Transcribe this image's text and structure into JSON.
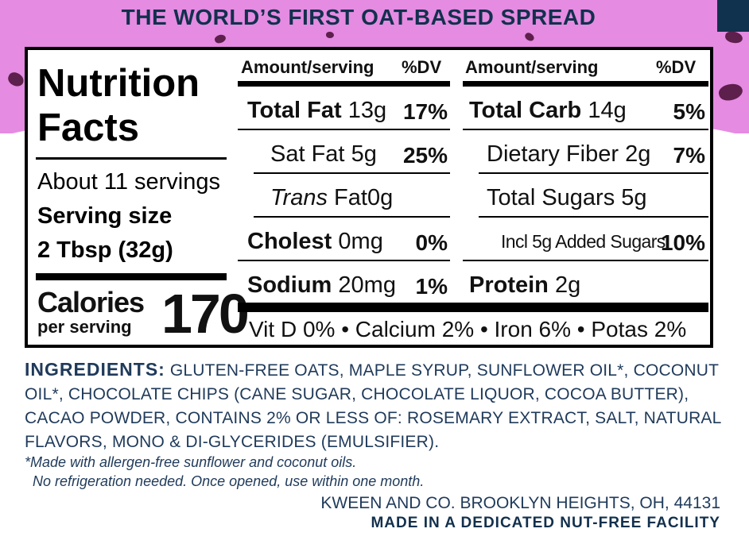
{
  "headline": "THE WORLD’S FIRST OAT-BASED SPREAD",
  "colors": {
    "banner": "#e58be2",
    "navy": "#12304d",
    "sprinkle": "#5d1f4c"
  },
  "panel": {
    "title_line1": "Nutrition",
    "title_line2": "Facts",
    "servings": "About 11 servings",
    "serving_size_label": "Serving size",
    "serving_size_value": "2 Tbsp (32g)",
    "calories_label": "Calories",
    "calories_sub": "per serving",
    "calories_value": "170",
    "column_head_amount": "Amount/serving",
    "column_head_dv": "%DV",
    "left_rows": [
      {
        "name": "Total Fat",
        "amount": "13g",
        "dv": "17%"
      },
      {
        "name": "Sat Fat",
        "amount": "5g",
        "dv": "25%"
      },
      {
        "name_italic": "Trans",
        "name": "Fat",
        "amount": "0g",
        "dv": ""
      },
      {
        "name": "Cholest",
        "amount": "0mg",
        "dv": "0%"
      },
      {
        "name": "Sodium",
        "amount": "20mg",
        "dv": "1%"
      }
    ],
    "right_rows": [
      {
        "name": "Total Carb",
        "amount": "14g",
        "dv": "5%"
      },
      {
        "name": "Dietary Fiber",
        "amount": "2g",
        "dv": "7%"
      },
      {
        "name": "Total Sugars",
        "amount": "5g",
        "dv": ""
      },
      {
        "name": "Incl 5g Added Sugars",
        "amount": "",
        "dv": "10%"
      },
      {
        "name": "Protein",
        "amount": "2g",
        "dv": ""
      }
    ],
    "vitamins": "Vit D 0% • Calcium 2% • Iron 6% • Potas 2%"
  },
  "ingredients": {
    "label": "INGREDIENTS:",
    "text": "GLUTEN-FREE OATS, MAPLE SYRUP, SUNFLOWER OIL*, COCONUT OIL*, CHOCOLATE CHIPS (CANE SUGAR, CHOCOLATE LIQUOR, COCOA BUTTER), CACAO POWDER, CONTAINS 2% OR LESS OF: ROSEMARY EXTRACT, SALT, NATURAL FLAVORS, MONO & DI-GLYCERIDES (EMULSIFIER)."
  },
  "notes": {
    "allergen": "*Made with allergen-free sunflower and coconut oils.",
    "storage": "No refrigeration needed. Once opened, use within one month."
  },
  "company": "KWEEN AND CO. BROOKLYN HEIGHTS, OH, 44131",
  "facility": "MADE IN A DEDICATED NUT-FREE FACILITY"
}
